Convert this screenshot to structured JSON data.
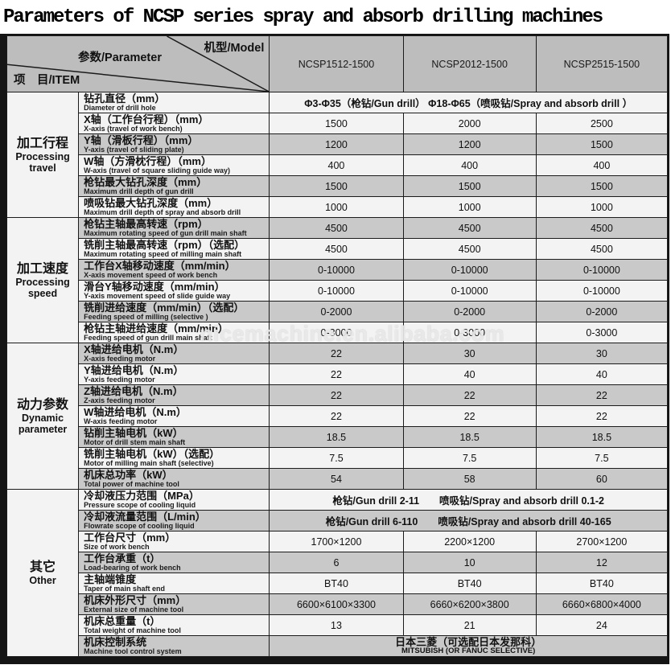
{
  "page": {
    "title": "Parameters of NCSP series spray and absorb drilling machines"
  },
  "watermark": "nicemachine.en.alibaba.com",
  "colors": {
    "header_bg": "#bdbdbd",
    "row_gray": "#c9c9c9",
    "row_white": "#f3f3f3",
    "border": "#1b1b1b"
  },
  "header": {
    "model_label": "机型/Model",
    "parameter_label": "参数/Parameter",
    "item_label": "项　目/ITEM",
    "models": [
      "NCSP1512-1500",
      "NCSP2012-1500",
      "NCSP2515-1500"
    ]
  },
  "groups": [
    {
      "cn": "加工行程",
      "en": "Processing travel",
      "rows": [
        {
          "cn": "钻孔直径（mm）",
          "en": "Diameter of drill hole",
          "span": "Φ3-Φ35（枪钻/Gun drill）  Φ18-Φ65（喷吸钻/Spray and absorb drill ）"
        },
        {
          "cn": "X轴（工作台行程）（mm）",
          "en": "X-axis (travel of work bench)",
          "values": [
            "1500",
            "2000",
            "2500"
          ]
        },
        {
          "cn": "Y轴（滑板行程）（mm）",
          "en": "Y-axis (travel of sliding plate)",
          "values": [
            "1200",
            "1200",
            "1500"
          ]
        },
        {
          "cn": "W轴（方滑枕行程）（mm）",
          "en": "W-axis (travel of square sliding guide way)",
          "values": [
            "400",
            "400",
            "400"
          ]
        },
        {
          "cn": "枪钻最大钻孔深度（mm）",
          "en": "Maximum drill depth of gun drill",
          "values": [
            "1500",
            "1500",
            "1500"
          ]
        },
        {
          "cn": "喷吸钻最大钻孔深度（mm）",
          "en": "Maximum drill depth of spray and absorb drill",
          "values": [
            "1000",
            "1000",
            "1000"
          ]
        }
      ]
    },
    {
      "cn": "加工速度",
      "en": "Processing speed",
      "rows": [
        {
          "cn": "枪钻主轴最高转速（rpm）",
          "en": "Maximum rotating speed of gun drill main shaft",
          "values": [
            "4500",
            "4500",
            "4500"
          ]
        },
        {
          "cn": "铣削主轴最高转速（rpm）（选配）",
          "en": "Maximum rotating speed of milling main shaft",
          "values": [
            "4500",
            "4500",
            "4500"
          ]
        },
        {
          "cn": "工作台X轴移动速度（mm/min）",
          "en": "X-axis movement speed of work bench",
          "values": [
            "0-10000",
            "0-10000",
            "0-10000"
          ]
        },
        {
          "cn": "滑台Y轴移动速度（mm/min）",
          "en": "Y-axis movement speed of slide guide way",
          "values": [
            "0-10000",
            "0-10000",
            "0-10000"
          ]
        },
        {
          "cn": "铣削进给速度（mm/min）（选配）",
          "en": "Feeding speed of milling (selective )",
          "values": [
            "0-2000",
            "0-2000",
            "0-2000"
          ]
        },
        {
          "cn": "枪钻主轴进给速度（mm/min）",
          "en": "Feeding speed of gun drill main shaft",
          "values": [
            "0-3000",
            "0-3000",
            "0-3000"
          ]
        }
      ]
    },
    {
      "cn": "动力参数",
      "en": "Dynamic parameter",
      "rows": [
        {
          "cn": "X轴进给电机（N.m）",
          "en": "X-axis feeding motor",
          "values": [
            "22",
            "30",
            "30"
          ]
        },
        {
          "cn": "Y轴进给电机（N.m）",
          "en": "Y-axis feeding motor",
          "values": [
            "22",
            "40",
            "40"
          ]
        },
        {
          "cn": "Z轴进给电机（N.m）",
          "en": "Z-axis feeding motor",
          "values": [
            "22",
            "22",
            "22"
          ]
        },
        {
          "cn": "W轴进给电机（N.m）",
          "en": "W-axis feeding motor",
          "values": [
            "22",
            "22",
            "22"
          ]
        },
        {
          "cn": "钻削主轴电机（kW）",
          "en": "Motor of drill stem main shaft",
          "values": [
            "18.5",
            "18.5",
            "18.5"
          ]
        },
        {
          "cn": "铣削主轴电机（kW）（选配）",
          "en": "Motor of milling main shaft (selective)",
          "values": [
            "7.5",
            "7.5",
            "7.5"
          ]
        },
        {
          "cn": "机床总功率（kW）",
          "en": "Total power of machine tool",
          "values": [
            "54",
            "58",
            "60"
          ]
        }
      ]
    },
    {
      "cn": "其它",
      "en": "Other",
      "rows": [
        {
          "cn": "冷却液压力范围（MPa）",
          "en": "Pressure scope of cooling liquid",
          "span": "枪钻/Gun drill  2-11　　喷吸钻/Spray and absorb drill 0.1-2"
        },
        {
          "cn": "冷却液流量范围（L/min）",
          "en": "Flowrate scope of cooling liquid",
          "span": "枪钻/Gun drill  6-110　　喷吸钻/Spray and absorb drill 40-165"
        },
        {
          "cn": "工作台尺寸（mm）",
          "en": "Size of work bench",
          "values": [
            "1700×1200",
            "2200×1200",
            "2700×1200"
          ]
        },
        {
          "cn": "工作台承重（t）",
          "en": "Load-bearing of work bench",
          "values": [
            "6",
            "10",
            "12"
          ]
        },
        {
          "cn": "主轴端锥度",
          "en": "Taper of main shaft end",
          "values": [
            "BT40",
            "BT40",
            "BT40"
          ]
        },
        {
          "cn": "机床外形尺寸（mm）",
          "en": "External size of machine tool",
          "values": [
            "6600×6100×3300",
            "6660×6200×3800",
            "6660×6800×4000"
          ]
        },
        {
          "cn": "机床总重量（t）",
          "en": "Total weight of machine tool",
          "values": [
            "13",
            "21",
            "24"
          ]
        },
        {
          "cn": "机床控制系统",
          "en": "Machine tool control system",
          "span_cn": "日本三菱（可选配日本发那科）",
          "span_en": "MITSUBISH (OR FANUC SELECTIVE)"
        }
      ]
    }
  ]
}
